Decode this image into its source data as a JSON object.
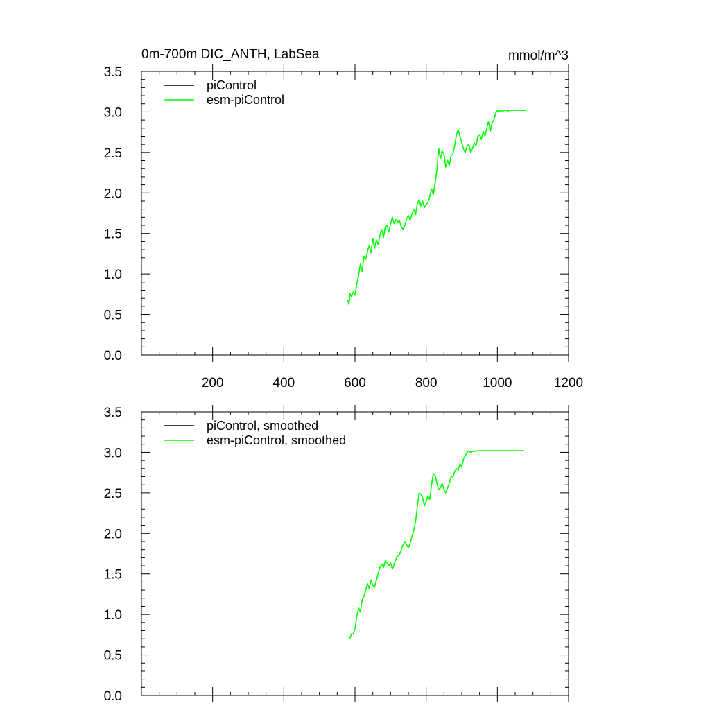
{
  "chart_data": [
    {
      "type": "line",
      "title": "0m-700m DIC_ANTH, LabSea",
      "units": "mmol/m^3",
      "xlabel": "",
      "ylabel": "",
      "xlim": [
        0,
        1200
      ],
      "ylim": [
        0,
        3.5
      ],
      "xticks": [
        200,
        400,
        600,
        800,
        1000,
        1200
      ],
      "xtick_labels": [
        "200",
        "400",
        "600",
        "800",
        "1000",
        "1200"
      ],
      "yticks": [
        0,
        0.5,
        1.0,
        1.5,
        2.0,
        2.5,
        3.0,
        3.5
      ],
      "ytick_labels": [
        "0.0",
        "0.5",
        "1.0",
        "1.5",
        "2.0",
        "2.5",
        "3.0",
        "3.5"
      ],
      "grid": false,
      "legend_position": "top-left",
      "series": [
        {
          "name": "piControl",
          "color": "#000000",
          "x": [],
          "y": []
        },
        {
          "name": "esm-piControl",
          "color": "#00ff00",
          "x": [
            580,
            583,
            586,
            590,
            595,
            600,
            605,
            610,
            615,
            620,
            625,
            630,
            635,
            640,
            645,
            650,
            655,
            660,
            665,
            670,
            675,
            680,
            685,
            690,
            695,
            700,
            705,
            710,
            715,
            720,
            725,
            730,
            735,
            740,
            745,
            750,
            755,
            760,
            765,
            770,
            775,
            780,
            785,
            790,
            795,
            800,
            805,
            810,
            815,
            820,
            825,
            830,
            835,
            840,
            845,
            850,
            855,
            860,
            865,
            870,
            875,
            880,
            885,
            890,
            895,
            900,
            905,
            910,
            915,
            920,
            925,
            930,
            935,
            940,
            945,
            950,
            955,
            960,
            965,
            970,
            975,
            980,
            985,
            990,
            995,
            1000,
            1005,
            1010,
            1015,
            1020,
            1025,
            1030,
            1035,
            1040,
            1045,
            1050,
            1055,
            1060,
            1065,
            1070,
            1075,
            1080
          ],
          "y": [
            0.68,
            0.62,
            0.76,
            0.72,
            0.78,
            0.74,
            0.88,
            0.98,
            1.12,
            1.03,
            1.22,
            1.18,
            1.28,
            1.35,
            1.26,
            1.44,
            1.32,
            1.42,
            1.36,
            1.48,
            1.55,
            1.45,
            1.58,
            1.6,
            1.52,
            1.62,
            1.7,
            1.62,
            1.67,
            1.64,
            1.66,
            1.58,
            1.55,
            1.6,
            1.68,
            1.72,
            1.66,
            1.74,
            1.8,
            1.73,
            1.86,
            1.92,
            1.84,
            1.9,
            1.82,
            1.86,
            1.88,
            1.96,
            2.05,
            1.98,
            2.12,
            2.28,
            2.55,
            2.42,
            2.52,
            2.48,
            2.32,
            2.4,
            2.34,
            2.46,
            2.48,
            2.58,
            2.72,
            2.78,
            2.7,
            2.62,
            2.54,
            2.5,
            2.58,
            2.6,
            2.5,
            2.55,
            2.62,
            2.58,
            2.7,
            2.72,
            2.66,
            2.76,
            2.7,
            2.8,
            2.88,
            2.76,
            2.86,
            2.9,
            2.98,
            3.02,
            3.0,
            3.02,
            3.01,
            3.02,
            3.02,
            3.01,
            3.02,
            3.02,
            3.02,
            3.02,
            3.02,
            3.02,
            3.02,
            3.02,
            3.02,
            3.02
          ]
        }
      ]
    },
    {
      "type": "line",
      "title": "",
      "xlabel": "",
      "ylabel": "",
      "xlim": [
        0,
        1200
      ],
      "ylim": [
        0,
        3.5
      ],
      "xticks": [
        200,
        400,
        600,
        800,
        1000,
        1200
      ],
      "xtick_labels": [],
      "yticks": [
        0,
        0.5,
        1.0,
        1.5,
        2.0,
        2.5,
        3.0,
        3.5
      ],
      "ytick_labels": [
        "0.0",
        "0.5",
        "1.0",
        "1.5",
        "2.0",
        "2.5",
        "3.0",
        "3.5"
      ],
      "grid": false,
      "legend_position": "top-left",
      "series": [
        {
          "name": "piControl, smoothed",
          "color": "#000000",
          "x": [],
          "y": []
        },
        {
          "name": "esm-piControl, smoothed",
          "color": "#00ff00",
          "x": [
            585,
            590,
            595,
            600,
            605,
            610,
            615,
            620,
            625,
            630,
            635,
            640,
            645,
            650,
            655,
            660,
            665,
            670,
            675,
            680,
            685,
            690,
            695,
            700,
            705,
            710,
            715,
            720,
            725,
            730,
            735,
            740,
            745,
            750,
            755,
            760,
            765,
            770,
            775,
            780,
            785,
            790,
            795,
            800,
            805,
            810,
            815,
            820,
            825,
            830,
            835,
            840,
            845,
            850,
            855,
            860,
            865,
            870,
            875,
            880,
            885,
            890,
            895,
            900,
            905,
            910,
            915,
            920,
            925,
            930,
            935,
            940,
            945,
            950,
            955,
            960,
            965,
            970,
            975,
            980,
            985,
            990,
            995,
            1000,
            1005,
            1010,
            1015,
            1020,
            1025,
            1030,
            1035,
            1040,
            1045,
            1050,
            1055,
            1060,
            1065,
            1070,
            1075
          ],
          "y": [
            0.7,
            0.76,
            0.76,
            0.82,
            0.98,
            1.08,
            1.03,
            1.18,
            1.22,
            1.3,
            1.38,
            1.32,
            1.42,
            1.36,
            1.34,
            1.42,
            1.5,
            1.58,
            1.62,
            1.58,
            1.66,
            1.64,
            1.6,
            1.64,
            1.56,
            1.62,
            1.68,
            1.72,
            1.74,
            1.8,
            1.86,
            1.9,
            1.86,
            1.82,
            1.88,
            1.96,
            2.04,
            2.14,
            2.32,
            2.5,
            2.48,
            2.44,
            2.34,
            2.4,
            2.46,
            2.42,
            2.6,
            2.74,
            2.72,
            2.62,
            2.54,
            2.56,
            2.62,
            2.54,
            2.5,
            2.56,
            2.62,
            2.7,
            2.7,
            2.76,
            2.8,
            2.78,
            2.86,
            2.82,
            2.92,
            2.96,
            3.0,
            3.02,
            3.0,
            3.01,
            3.02,
            3.01,
            3.02,
            3.02,
            3.02,
            3.02,
            3.02,
            3.02,
            3.02,
            3.02,
            3.02,
            3.02,
            3.02,
            3.02,
            3.02,
            3.02,
            3.02,
            3.02,
            3.02,
            3.02,
            3.02,
            3.02,
            3.02,
            3.02,
            3.02,
            3.02,
            3.02,
            3.02,
            3.02
          ]
        }
      ]
    }
  ]
}
